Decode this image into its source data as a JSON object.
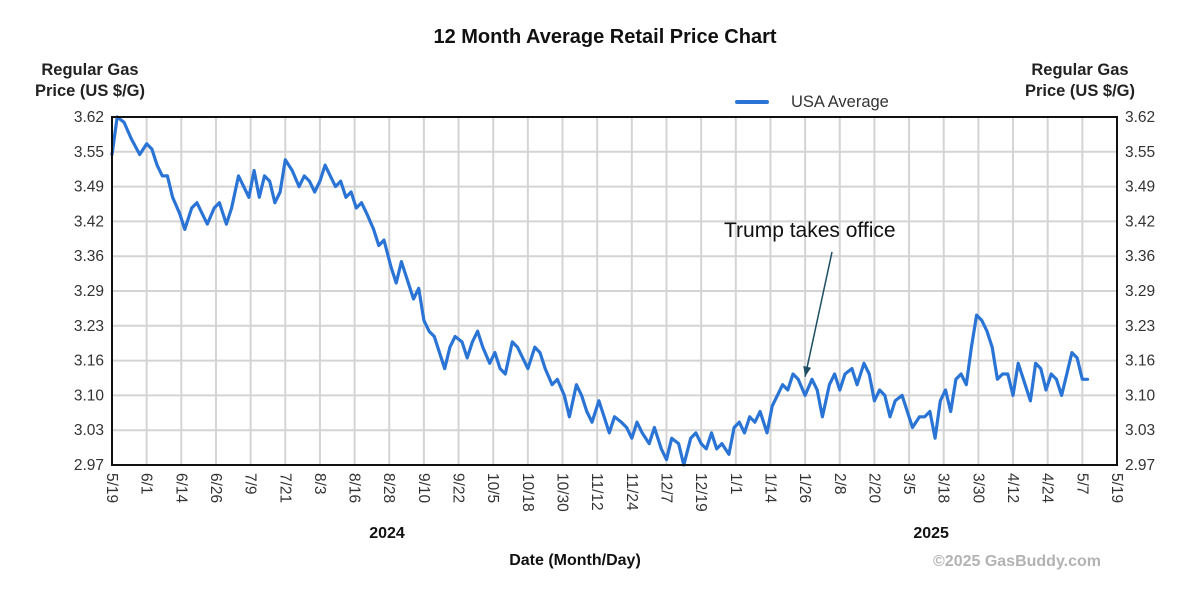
{
  "chart_data": {
    "type": "line",
    "title": "12 Month Average Retail Price Chart",
    "ylabel": "Regular Gas Price (US $/G)",
    "xlabel": "Date (Month/Day)",
    "ylim": [
      2.97,
      3.62
    ],
    "y_ticks": [
      "3.62",
      "3.55",
      "3.49",
      "3.42",
      "3.36",
      "3.29",
      "3.23",
      "3.16",
      "3.10",
      "3.03",
      "2.97"
    ],
    "x_ticks": [
      "5/19",
      "6/1",
      "6/14",
      "6/26",
      "7/9",
      "7/21",
      "8/3",
      "8/16",
      "8/28",
      "9/10",
      "9/22",
      "10/5",
      "10/18",
      "10/30",
      "11/12",
      "11/24",
      "12/7",
      "12/19",
      "1/1",
      "1/14",
      "1/26",
      "2/8",
      "2/20",
      "3/5",
      "3/18",
      "3/30",
      "4/12",
      "4/24",
      "5/7",
      "5/19"
    ],
    "years": [
      {
        "label": "2024",
        "at_tick": 8.0
      },
      {
        "label": "2025",
        "at_tick": 23.7
      }
    ],
    "grid": true,
    "legend": {
      "position": "top-right",
      "entries": [
        "USA Average"
      ]
    },
    "series": [
      {
        "name": "USA Average",
        "color": "#2a74d6",
        "x_index": [
          0.0,
          0.15,
          0.35,
          0.55,
          0.8,
          1.0,
          1.15,
          1.3,
          1.45,
          1.6,
          1.75,
          1.95,
          2.1,
          2.3,
          2.45,
          2.6,
          2.75,
          2.95,
          3.1,
          3.3,
          3.45,
          3.65,
          3.8,
          3.95,
          4.1,
          4.25,
          4.4,
          4.55,
          4.7,
          4.85,
          5.0,
          5.2,
          5.4,
          5.55,
          5.7,
          5.85,
          6.0,
          6.15,
          6.3,
          6.45,
          6.6,
          6.75,
          6.9,
          7.05,
          7.2,
          7.35,
          7.55,
          7.7,
          7.85,
          8.05,
          8.2,
          8.35,
          8.5,
          8.7,
          8.85,
          9.0,
          9.15,
          9.3,
          9.45,
          9.6,
          9.75,
          9.9,
          10.1,
          10.25,
          10.4,
          10.55,
          10.7,
          10.9,
          11.05,
          11.2,
          11.35,
          11.55,
          11.7,
          11.85,
          12.0,
          12.2,
          12.35,
          12.5,
          12.7,
          12.85,
          13.05,
          13.2,
          13.4,
          13.55,
          13.7,
          13.85,
          14.05,
          14.2,
          14.35,
          14.5,
          14.7,
          14.85,
          15.0,
          15.15,
          15.3,
          15.5,
          15.65,
          15.85,
          16.0,
          16.15,
          16.35,
          16.5,
          16.7,
          16.85,
          17.0,
          17.15,
          17.3,
          17.45,
          17.6,
          17.8,
          17.95,
          18.1,
          18.25,
          18.4,
          18.55,
          18.7,
          18.9,
          19.05,
          19.2,
          19.35,
          19.5,
          19.65,
          19.8,
          20.0,
          20.2,
          20.35,
          20.5,
          20.7,
          20.85,
          21.0,
          21.15,
          21.35,
          21.5,
          21.7,
          21.85,
          22.0,
          22.15,
          22.3,
          22.45,
          22.6,
          22.8,
          22.95,
          23.1,
          23.3,
          23.45,
          23.6,
          23.75,
          23.9,
          24.05,
          24.2,
          24.35,
          24.5,
          24.65,
          24.8,
          24.95,
          25.1,
          25.25,
          25.4,
          25.55,
          25.7,
          25.85,
          26.0,
          26.15,
          26.3,
          26.5,
          26.65,
          26.8,
          26.95,
          27.1,
          27.25,
          27.4,
          27.55,
          27.7,
          27.85,
          28.0,
          28.15,
          28.3,
          28.45,
          28.6,
          28.75,
          28.9,
          29.0
        ],
        "values": [
          3.55,
          3.62,
          3.61,
          3.58,
          3.55,
          3.57,
          3.56,
          3.53,
          3.51,
          3.51,
          3.47,
          3.44,
          3.41,
          3.45,
          3.46,
          3.44,
          3.42,
          3.45,
          3.46,
          3.42,
          3.45,
          3.51,
          3.49,
          3.47,
          3.52,
          3.47,
          3.51,
          3.5,
          3.46,
          3.48,
          3.54,
          3.52,
          3.49,
          3.51,
          3.5,
          3.48,
          3.5,
          3.53,
          3.51,
          3.49,
          3.5,
          3.47,
          3.48,
          3.45,
          3.46,
          3.44,
          3.41,
          3.38,
          3.39,
          3.34,
          3.31,
          3.35,
          3.32,
          3.28,
          3.3,
          3.24,
          3.22,
          3.21,
          3.18,
          3.15,
          3.19,
          3.21,
          3.2,
          3.17,
          3.2,
          3.22,
          3.19,
          3.16,
          3.18,
          3.15,
          3.14,
          3.2,
          3.19,
          3.17,
          3.15,
          3.19,
          3.18,
          3.15,
          3.12,
          3.13,
          3.1,
          3.06,
          3.12,
          3.1,
          3.07,
          3.05,
          3.09,
          3.06,
          3.03,
          3.06,
          3.05,
          3.04,
          3.02,
          3.05,
          3.03,
          3.01,
          3.04,
          3.0,
          2.98,
          3.02,
          3.01,
          2.97,
          3.02,
          3.03,
          3.01,
          3.0,
          3.03,
          3.0,
          3.01,
          2.99,
          3.04,
          3.05,
          3.03,
          3.06,
          3.05,
          3.07,
          3.03,
          3.08,
          3.1,
          3.12,
          3.11,
          3.14,
          3.13,
          3.1,
          3.13,
          3.11,
          3.06,
          3.12,
          3.14,
          3.11,
          3.14,
          3.15,
          3.12,
          3.16,
          3.14,
          3.09,
          3.11,
          3.1,
          3.06,
          3.09,
          3.1,
          3.07,
          3.04,
          3.06,
          3.06,
          3.07,
          3.02,
          3.09,
          3.11,
          3.07,
          3.13,
          3.14,
          3.12,
          3.19,
          3.25,
          3.24,
          3.22,
          3.19,
          3.13,
          3.14,
          3.14,
          3.1,
          3.16,
          3.13,
          3.09,
          3.16,
          3.15,
          3.11,
          3.14,
          3.13,
          3.1,
          3.14,
          3.18,
          3.17,
          3.13,
          3.13
        ]
      }
    ],
    "annotations": [
      {
        "text": "Trump takes office",
        "arrow_to_tick": 20.0,
        "arrow_to_value": 3.135
      }
    ]
  },
  "credit": "©2025 GasBuddy.com"
}
